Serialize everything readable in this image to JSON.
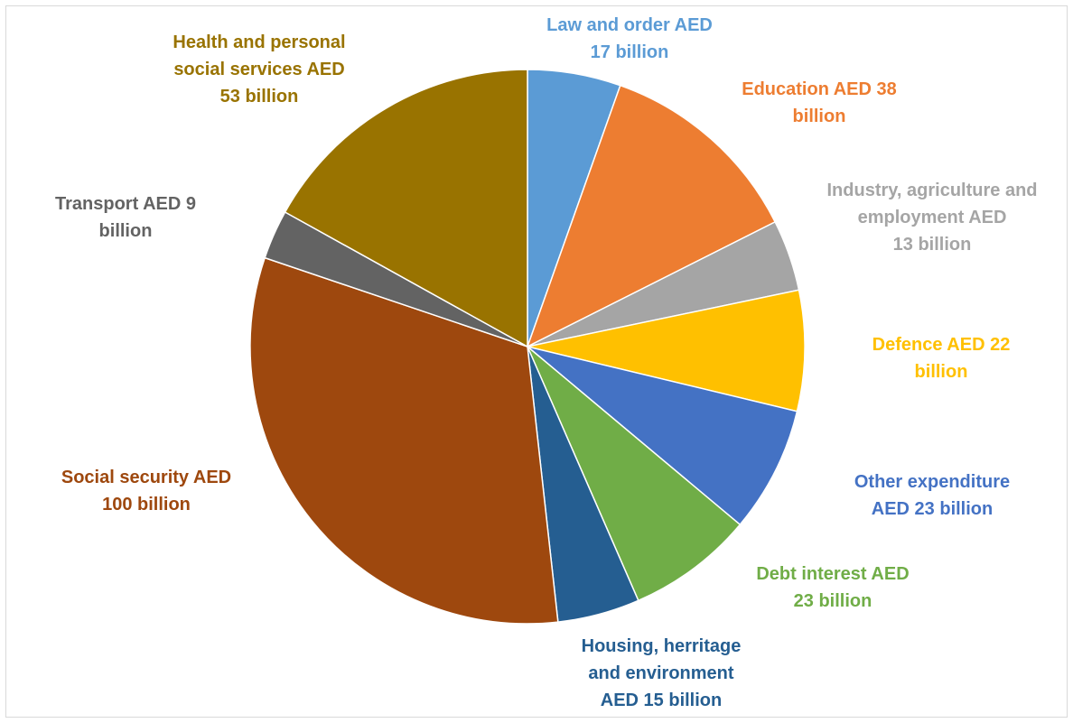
{
  "chart_data": {
    "type": "pie",
    "title": "",
    "slices": [
      {
        "label": "Law and order",
        "value": 17,
        "color": "#5B9BD5",
        "text": [
          "Law and order AED",
          "17 billion"
        ]
      },
      {
        "label": "Education",
        "value": 38,
        "color": "#ED7D31",
        "text": [
          "Education AED 38",
          "billion"
        ]
      },
      {
        "label": "Industry, agriculture and employment",
        "value": 13,
        "color": "#A5A5A5",
        "text": [
          "Industry, agriculture and",
          "employment AED",
          "13 billion"
        ]
      },
      {
        "label": "Defence",
        "value": 22,
        "color": "#FFC000",
        "text": [
          "Defence AED 22",
          "billion"
        ]
      },
      {
        "label": "Other expenditure",
        "value": 23,
        "color": "#4472C4",
        "text": [
          "Other expenditure",
          "AED 23 billion"
        ]
      },
      {
        "label": "Debt interest",
        "value": 23,
        "color": "#70AD47",
        "text": [
          "Debt interest AED",
          "23 billion"
        ]
      },
      {
        "label": "Housing, herritage and environment",
        "value": 15,
        "color": "#255E91",
        "text": [
          "Housing, herritage",
          "and environment",
          "AED 15 billion"
        ]
      },
      {
        "label": "Social security",
        "value": 100,
        "color": "#9E480E",
        "text": [
          "Social security AED",
          "100 billion"
        ]
      },
      {
        "label": "Transport",
        "value": 9,
        "color": "#636363",
        "text": [
          "Transport AED 9",
          "billion"
        ]
      },
      {
        "label": "Health and personal social services",
        "value": 53,
        "color": "#997300",
        "text": [
          "Health and personal",
          "social services AED",
          "53 billion"
        ]
      }
    ]
  }
}
